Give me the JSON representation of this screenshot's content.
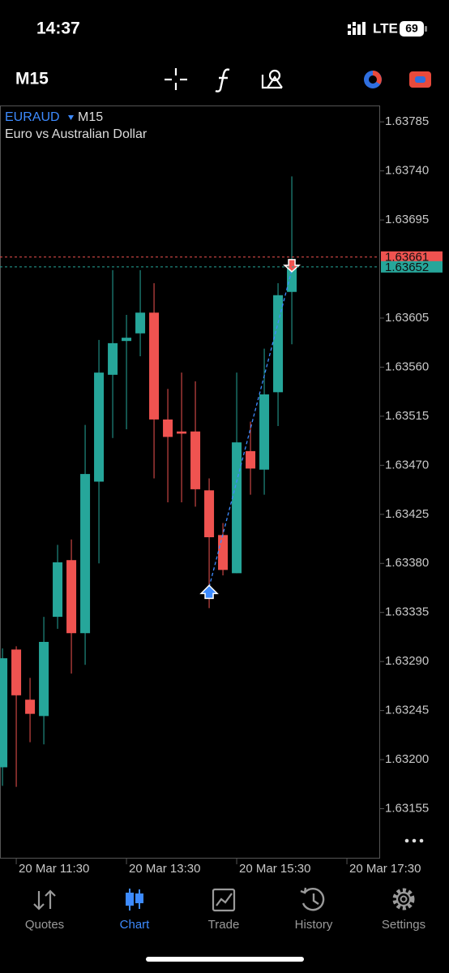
{
  "status": {
    "time": "14:37",
    "network": "LTE",
    "battery": "69"
  },
  "toolbar": {
    "timeframe": "M15"
  },
  "chart_data": {
    "type": "candlestick",
    "symbol": "EURAUD",
    "timeframe": "M15",
    "title": "Euro vs Australian Dollar",
    "x": [
      0,
      1,
      2,
      3,
      4,
      5,
      6,
      7,
      8,
      9,
      10,
      11,
      12,
      13,
      14,
      15,
      16,
      17,
      18,
      19,
      20,
      21
    ],
    "open": [
      1.63193,
      1.63301,
      1.63255,
      1.6324,
      1.63331,
      1.63383,
      1.63316,
      1.63455,
      1.63553,
      1.63584,
      1.63591,
      1.6361,
      1.63512,
      1.63501,
      1.63501,
      1.63447,
      1.63406,
      1.63371,
      1.63483,
      1.63466,
      1.63537,
      1.63629
    ],
    "high": [
      1.63302,
      1.63304,
      1.63275,
      1.63331,
      1.63397,
      1.63402,
      1.63507,
      1.63585,
      1.63649,
      1.63608,
      1.63649,
      1.63637,
      1.6354,
      1.63555,
      1.63547,
      1.63458,
      1.63417,
      1.63555,
      1.6351,
      1.63577,
      1.63637,
      1.63735
    ],
    "low": [
      1.63176,
      1.63175,
      1.63216,
      1.63214,
      1.6332,
      1.63279,
      1.63287,
      1.6338,
      1.63495,
      1.63503,
      1.6357,
      1.63458,
      1.63436,
      1.63436,
      1.63432,
      1.63339,
      1.63369,
      1.63371,
      1.63443,
      1.63443,
      1.63506,
      1.63581
    ],
    "close": [
      1.63293,
      1.63259,
      1.63242,
      1.63308,
      1.63381,
      1.63316,
      1.63462,
      1.63555,
      1.63582,
      1.63587,
      1.6361,
      1.63512,
      1.63496,
      1.63499,
      1.63448,
      1.63404,
      1.63374,
      1.63491,
      1.63467,
      1.63535,
      1.63626,
      1.63652
    ],
    "up_color": "#26a69a",
    "down_color": "#ef5350",
    "ask": 1.63661,
    "bid": 1.63652,
    "ask_color": "#ef5350",
    "bid_color": "#26a69a",
    "ylim": [
      1.6311,
      1.638
    ],
    "yticks": [
      1.63785,
      {
        "value": 1.6374,
        "label": "1.63740"
      },
      1.63695,
      1.63605,
      {
        "value": 1.6356,
        "label": "1.63560"
      },
      1.63515,
      {
        "value": 1.6347,
        "label": "1.63470"
      },
      1.63425,
      {
        "value": 1.6338,
        "label": "1.63380"
      },
      1.63335,
      {
        "value": 1.6329,
        "label": "1.63290"
      },
      1.63245,
      {
        "value": 1.632,
        "label": "1.63200"
      },
      1.63155
    ],
    "xlim": [
      -0.18,
      27.35
    ],
    "xticks": [
      {
        "value": 1,
        "label": "20 Mar 11:30"
      },
      {
        "value": 9,
        "label": "20 Mar 13:30"
      },
      {
        "value": 17,
        "label": "20 Mar 15:30"
      },
      {
        "value": 25,
        "label": "20 Mar 17:30"
      }
    ]
  },
  "nav": {
    "tabs": [
      "Quotes",
      "Chart",
      "Trade",
      "History",
      "Settings"
    ],
    "active": 1
  }
}
